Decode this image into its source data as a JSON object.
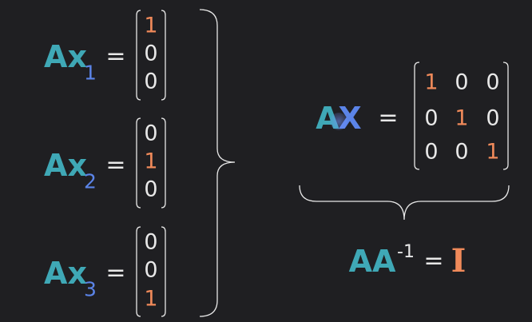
{
  "colors": {
    "teal": "#3fa8b6",
    "blue": "#5b84e8",
    "white": "#e8e8e8",
    "orange": "#f08a5a",
    "background": "#1f1f22"
  },
  "equations": [
    {
      "lhs": "Ax",
      "sub": "1",
      "eq": "=",
      "vector": [
        "1",
        "0",
        "0"
      ],
      "highlight": 0
    },
    {
      "lhs": "Ax",
      "sub": "2",
      "eq": "=",
      "vector": [
        "0",
        "1",
        "0"
      ],
      "highlight": 1
    },
    {
      "lhs": "Ax",
      "sub": "3",
      "eq": "=",
      "vector": [
        "0",
        "0",
        "1"
      ],
      "highlight": 2
    }
  ],
  "matrix_eq": {
    "lhs_a": "A",
    "lhs_x": "X",
    "eq": "=",
    "rows": [
      [
        "1",
        "0",
        "0"
      ],
      [
        "0",
        "1",
        "0"
      ],
      [
        "0",
        "0",
        "1"
      ]
    ]
  },
  "result": {
    "base": "AA",
    "sup": "-1",
    "eq": "=",
    "identity": "I"
  },
  "icons": [
    "cursor-icon"
  ]
}
